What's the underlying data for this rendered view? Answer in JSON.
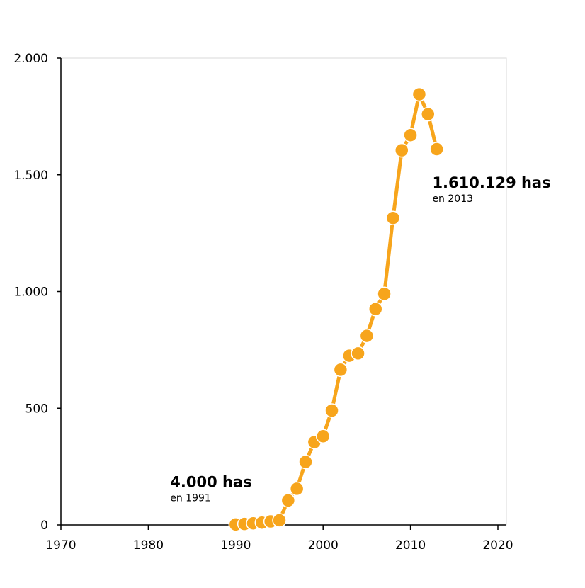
{
  "chart_data": {
    "type": "line",
    "title": "",
    "xlabel": "",
    "ylabel": "",
    "xlim": [
      1970,
      2020
    ],
    "ylim": [
      0,
      2000
    ],
    "x_ticks": [
      1970,
      1980,
      1990,
      2000,
      2010,
      2020
    ],
    "x_tick_labels": [
      "1970",
      "1980",
      "1990",
      "2000",
      "2010",
      "2020"
    ],
    "y_ticks": [
      0,
      500,
      1000,
      1500,
      2000
    ],
    "y_tick_labels": [
      "0",
      "500",
      "1.000",
      "1.500",
      "2.000"
    ],
    "grid": false,
    "colors": {
      "series": "#f7a51c",
      "marker_edge": "#ffffff"
    },
    "series": [
      {
        "x": [
          1990,
          1991,
          1992,
          1993,
          1994,
          1995,
          1996,
          1997,
          1998,
          1999,
          2000,
          2001,
          2002,
          2003,
          2004,
          2005,
          2006,
          2007,
          2008,
          2009,
          2010,
          2011,
          2012,
          2013
        ],
        "values": [
          2,
          4,
          7,
          10,
          15,
          20,
          105,
          155,
          270,
          355,
          380,
          490,
          665,
          725,
          735,
          810,
          925,
          990,
          1315,
          1605,
          1670,
          1845,
          1760,
          1610
        ]
      }
    ],
    "annotations": [
      {
        "title": "4.000 has",
        "subtitle": "en 1991",
        "x": 1982.5,
        "y": 163
      },
      {
        "title": "1.610.129 has",
        "subtitle": "en 2013",
        "x": 2012.5,
        "y": 1445
      }
    ]
  }
}
